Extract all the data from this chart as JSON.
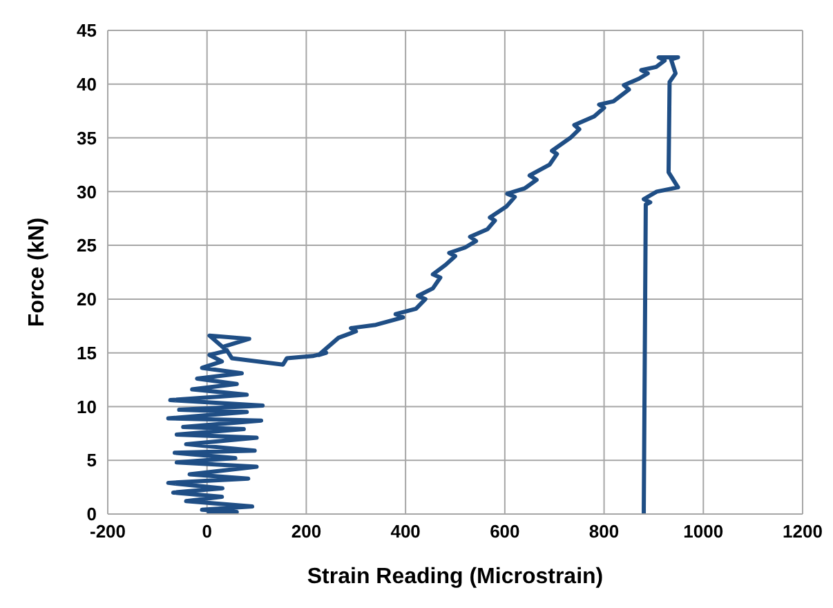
{
  "chart_data": {
    "type": "line",
    "xlabel": "Strain Reading (Microstrain)",
    "ylabel": "Force (kN)",
    "xlim": [
      -200,
      1200
    ],
    "xticks": [
      -200,
      0,
      200,
      400,
      600,
      800,
      1000,
      1200
    ],
    "ylim": [
      0,
      45
    ],
    "yticks": [
      0,
      5,
      10,
      15,
      20,
      25,
      30,
      35,
      40,
      45
    ],
    "grid": true,
    "marker": "none",
    "line_style": "solid",
    "legend": false,
    "series": [
      {
        "color": "#1f4e85",
        "x": [
          0,
          60,
          -10,
          91,
          -42,
          30,
          -68,
          31,
          -78,
          83,
          -35,
          100,
          -61,
          57,
          -65,
          96,
          -42,
          100,
          -61,
          74,
          -48,
          109,
          -78,
          80,
          -56,
          112,
          -74,
          80,
          -30,
          60,
          -20,
          70,
          -10,
          30,
          5,
          40,
          5,
          85,
          35,
          50,
          153,
          161,
          213,
          240,
          225,
          265,
          300,
          290,
          340,
          395,
          380,
          421,
          440,
          425,
          455,
          470,
          455,
          481,
          500,
          488,
          520,
          542,
          530,
          565,
          580,
          570,
          603,
          620,
          605,
          640,
          664,
          650,
          690,
          705,
          695,
          732,
          750,
          740,
          780,
          800,
          790,
          819,
          850,
          840,
          870,
          888,
          875,
          905,
          922,
          910,
          949,
          935,
          944,
          932,
          930,
          949,
          906,
          880,
          893,
          884,
          880,
          880
        ],
        "values": [
          0,
          0.2,
          0.4,
          0.7,
          1.2,
          1.6,
          2.0,
          2.4,
          2.9,
          3.3,
          3.7,
          4.4,
          4.8,
          5.2,
          5.7,
          5.9,
          6.5,
          7.1,
          7.4,
          7.9,
          8.1,
          8.7,
          8.9,
          9.5,
          9.7,
          10.1,
          10.6,
          11.1,
          11.6,
          12.1,
          12.6,
          13.1,
          13.6,
          14.2,
          14.8,
          15.2,
          16.6,
          16.3,
          15.6,
          14.5,
          13.9,
          14.5,
          14.7,
          15.0,
          14.8,
          16.4,
          17.0,
          17.3,
          17.6,
          18.3,
          18.6,
          19.1,
          20.0,
          20.3,
          21.0,
          22.0,
          22.3,
          23.2,
          24.0,
          24.3,
          24.8,
          25.4,
          25.8,
          26.5,
          27.3,
          27.6,
          28.6,
          29.5,
          29.8,
          30.3,
          31.1,
          31.5,
          32.5,
          33.5,
          33.8,
          35.0,
          35.8,
          36.2,
          37.0,
          37.8,
          38.1,
          38.4,
          39.5,
          39.9,
          40.5,
          41.0,
          41.3,
          41.6,
          42.2,
          42.5,
          42.5,
          42.3,
          41.0,
          40.2,
          31.8,
          30.4,
          30.0,
          29.3,
          29.0,
          28.8,
          0.5,
          0
        ]
      }
    ]
  }
}
